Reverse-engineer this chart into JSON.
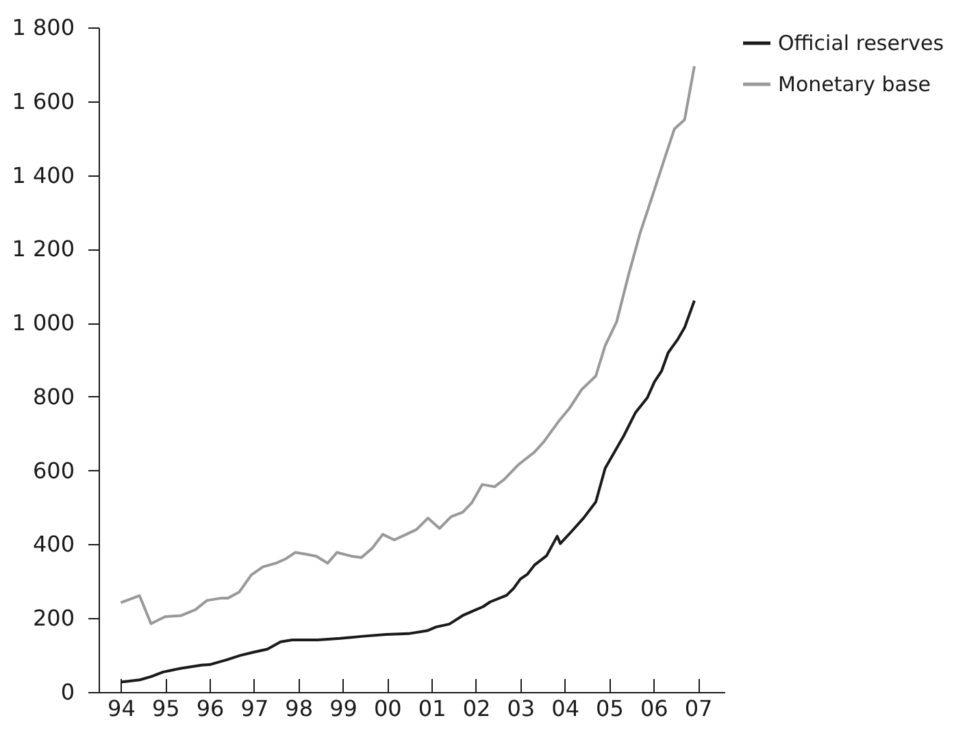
{
  "chart_data": {
    "type": "line",
    "xlim": [
      1993.5,
      2007.6
    ],
    "xticks": [
      {
        "value": 1994,
        "label": "94"
      },
      {
        "value": 1995,
        "label": "95"
      },
      {
        "value": 1996,
        "label": "96"
      },
      {
        "value": 1997,
        "label": "97"
      },
      {
        "value": 1998,
        "label": "98"
      },
      {
        "value": 1999,
        "label": "99"
      },
      {
        "value": 2000,
        "label": "00"
      },
      {
        "value": 2001,
        "label": "01"
      },
      {
        "value": 2002,
        "label": "02"
      },
      {
        "value": 2003,
        "label": "03"
      },
      {
        "value": 2004,
        "label": "04"
      },
      {
        "value": 2005,
        "label": "05"
      },
      {
        "value": 2006,
        "label": "06"
      },
      {
        "value": 2007,
        "label": "07"
      }
    ],
    "ylim": [
      0,
      1800
    ],
    "yticks": [
      0,
      200,
      400,
      600,
      800,
      {
        "value": 1000,
        "label": "1 000"
      },
      {
        "value": 1200,
        "label": "1 200"
      },
      {
        "value": 1400,
        "label": "1 400"
      },
      {
        "value": 1600,
        "label": "1 600"
      },
      {
        "value": 1800,
        "label": "1 800"
      }
    ],
    "grid": false,
    "legend": "right",
    "marker": "none",
    "line_style": "solid",
    "series": [
      {
        "name": "Official reserves",
        "color": "#1a1a1a",
        "x": [
          1994.0,
          1994.43,
          1994.69,
          1994.95,
          1995.35,
          1995.82,
          1996.0,
          1996.38,
          1996.69,
          1997.0,
          1997.3,
          1997.6,
          1997.86,
          1998.43,
          1998.94,
          1999.46,
          1999.97,
          2000.48,
          2000.9,
          2001.1,
          2001.4,
          2001.7,
          2002.0,
          2002.16,
          2002.32,
          2002.69,
          2002.85,
          2003.0,
          2003.16,
          2003.32,
          2003.59,
          2003.83,
          2003.9,
          2004.17,
          2004.43,
          2004.7,
          2004.91,
          2005.12,
          2005.33,
          2005.59,
          2005.86,
          2006.02,
          2006.18,
          2006.33,
          2006.55,
          2006.7,
          2006.92
        ],
        "values": [
          27,
          33,
          42,
          54,
          64,
          73,
          74,
          87,
          99,
          108,
          116,
          136,
          141,
          141,
          145,
          151,
          156,
          158,
          166,
          176,
          184,
          207,
          223,
          231,
          244,
          262,
          281,
          306,
          319,
          344,
          369,
          422,
          402,
          437,
          472,
          515,
          606,
          650,
          694,
          756,
          797,
          840,
          869,
          919,
          956,
          987,
          1060
        ]
      },
      {
        "name": "Monetary base",
        "color": "#999999",
        "x": [
          1994.0,
          1994.42,
          1994.68,
          1995.0,
          1995.36,
          1995.68,
          1995.94,
          1996.25,
          1996.41,
          1996.67,
          1996.94,
          1997.2,
          1997.5,
          1997.72,
          1997.93,
          1998.14,
          1998.4,
          1998.66,
          1998.87,
          1999.19,
          1999.42,
          1999.66,
          1999.9,
          2000.16,
          2000.43,
          2000.66,
          2000.92,
          2001.18,
          2001.44,
          2001.7,
          2001.91,
          2002.14,
          2002.42,
          2002.63,
          2002.95,
          2003.32,
          2003.53,
          2003.85,
          2004.11,
          2004.38,
          2004.7,
          2004.91,
          2005.17,
          2005.44,
          2005.7,
          2005.96,
          2006.23,
          2006.47,
          2006.7,
          2006.92
        ],
        "values": [
          242,
          261,
          185,
          204,
          207,
          223,
          248,
          254,
          254,
          271,
          317,
          339,
          349,
          361,
          378,
          374,
          368,
          349,
          378,
          368,
          364,
          389,
          427,
          412,
          427,
          440,
          471,
          443,
          475,
          487,
          513,
          562,
          556,
          575,
          615,
          650,
          678,
          731,
          769,
          819,
          856,
          938,
          1003,
          1131,
          1244,
          1338,
          1438,
          1525,
          1550,
          1695
        ]
      }
    ]
  }
}
